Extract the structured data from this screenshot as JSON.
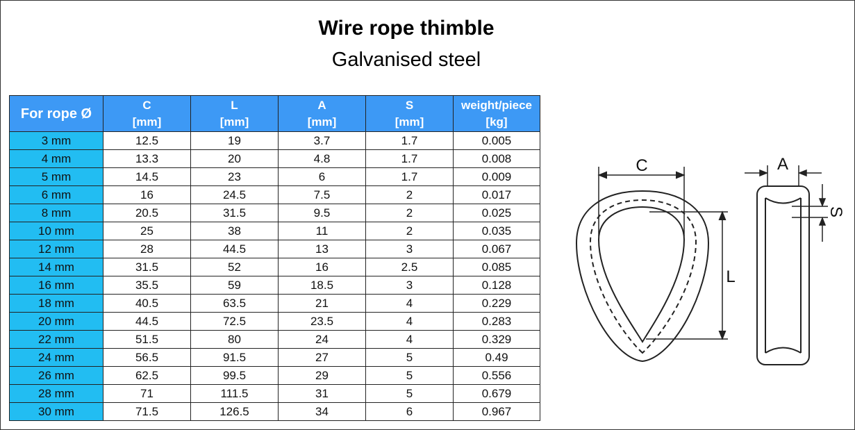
{
  "header": {
    "title": "Wire rope thimble",
    "subtitle": "Galvanised steel"
  },
  "table": {
    "columns": [
      {
        "name": "For rope Ø"
      },
      {
        "name": "C",
        "unit": "[mm]"
      },
      {
        "name": "L",
        "unit": "[mm]"
      },
      {
        "name": "A",
        "unit": "[mm]"
      },
      {
        "name": "S",
        "unit": "[mm]"
      },
      {
        "name": "weight/piece",
        "unit": "[kg]"
      }
    ],
    "rows": [
      [
        "3 mm",
        "12.5",
        "19",
        "3.7",
        "1.7",
        "0.005"
      ],
      [
        "4 mm",
        "13.3",
        "20",
        "4.8",
        "1.7",
        "0.008"
      ],
      [
        "5 mm",
        "14.5",
        "23",
        "6",
        "1.7",
        "0.009"
      ],
      [
        "6 mm",
        "16",
        "24.5",
        "7.5",
        "2",
        "0.017"
      ],
      [
        "8 mm",
        "20.5",
        "31.5",
        "9.5",
        "2",
        "0.025"
      ],
      [
        "10 mm",
        "25",
        "38",
        "11",
        "2",
        "0.035"
      ],
      [
        "12 mm",
        "28",
        "44.5",
        "13",
        "3",
        "0.067"
      ],
      [
        "14 mm",
        "31.5",
        "52",
        "16",
        "2.5",
        "0.085"
      ],
      [
        "16 mm",
        "35.5",
        "59",
        "18.5",
        "3",
        "0.128"
      ],
      [
        "18 mm",
        "40.5",
        "63.5",
        "21",
        "4",
        "0.229"
      ],
      [
        "20 mm",
        "44.5",
        "72.5",
        "23.5",
        "4",
        "0.283"
      ],
      [
        "22 mm",
        "51.5",
        "80",
        "24",
        "4",
        "0.329"
      ],
      [
        "24 mm",
        "56.5",
        "91.5",
        "27",
        "5",
        "0.49"
      ],
      [
        "26 mm",
        "62.5",
        "99.5",
        "29",
        "5",
        "0.556"
      ],
      [
        "28 mm",
        "71",
        "111.5",
        "31",
        "5",
        "0.679"
      ],
      [
        "30 mm",
        "71.5",
        "126.5",
        "34",
        "6",
        "0.967"
      ]
    ]
  },
  "diagram": {
    "front_width": "C",
    "front_length": "L",
    "side_width": "A",
    "side_thickness": "S"
  }
}
